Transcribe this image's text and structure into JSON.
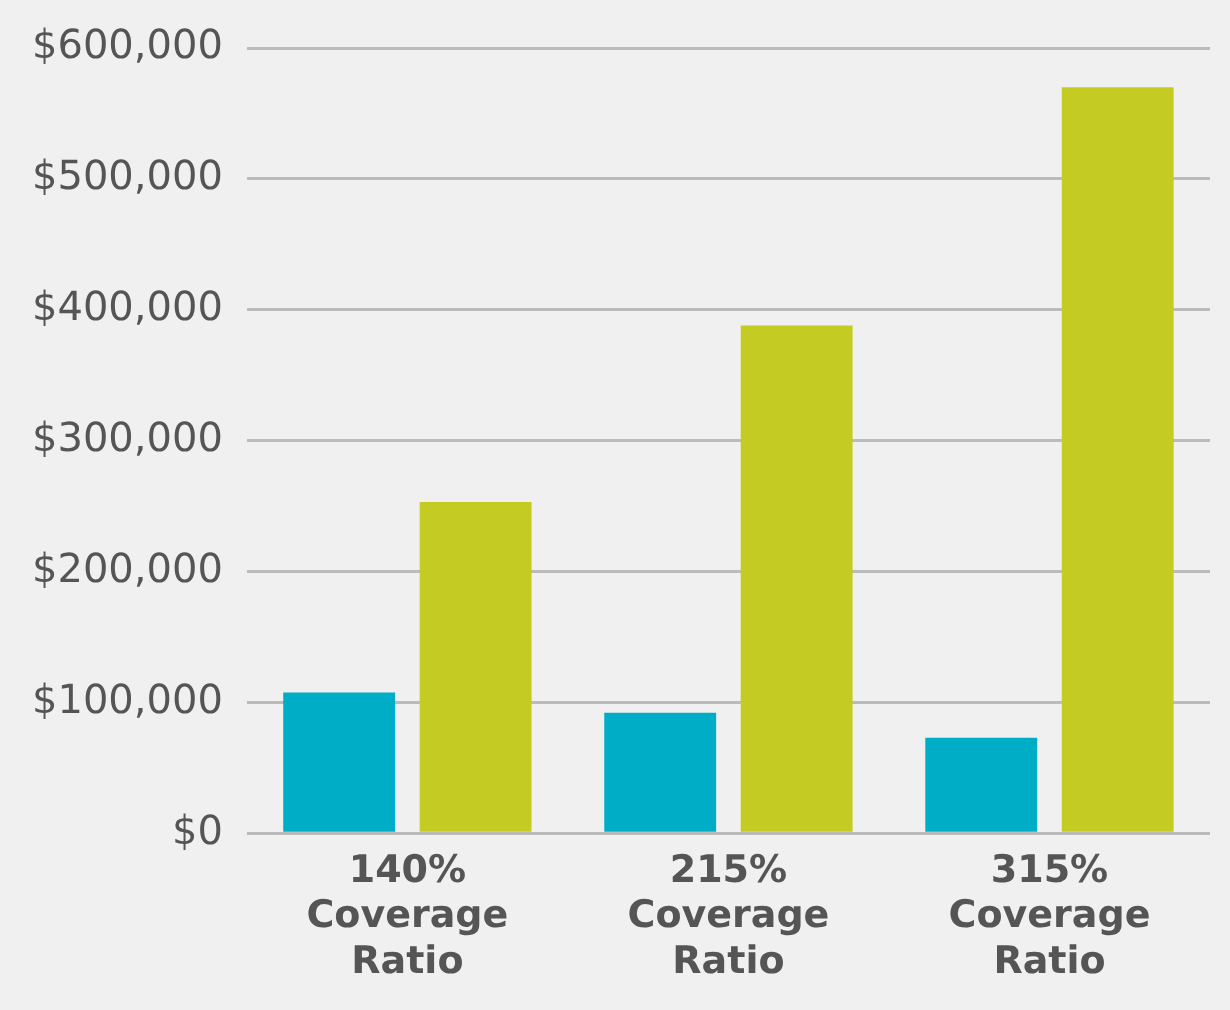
{
  "chart_data": {
    "type": "bar",
    "categories": [
      "140% Coverage Ratio",
      "215% Coverage Ratio",
      "315% Coverage Ratio"
    ],
    "series": [
      {
        "color": "#00adc6",
        "values": [
          107500,
          92000,
          73000
        ]
      },
      {
        "color": "#c4cc23",
        "values": [
          253000,
          388000,
          570000
        ]
      }
    ],
    "ylim": [
      0,
      600000
    ],
    "yticks": [
      {
        "value": 0,
        "label": "$0"
      },
      {
        "value": 100000,
        "label": "$100,000"
      },
      {
        "value": 200000,
        "label": "$200,000"
      },
      {
        "value": 300000,
        "label": "$300,000"
      },
      {
        "value": 400000,
        "label": "$400,000"
      },
      {
        "value": 500000,
        "label": "$500,000"
      },
      {
        "value": 600000,
        "label": "$600,000"
      }
    ],
    "grid": "y",
    "legend": false
  }
}
